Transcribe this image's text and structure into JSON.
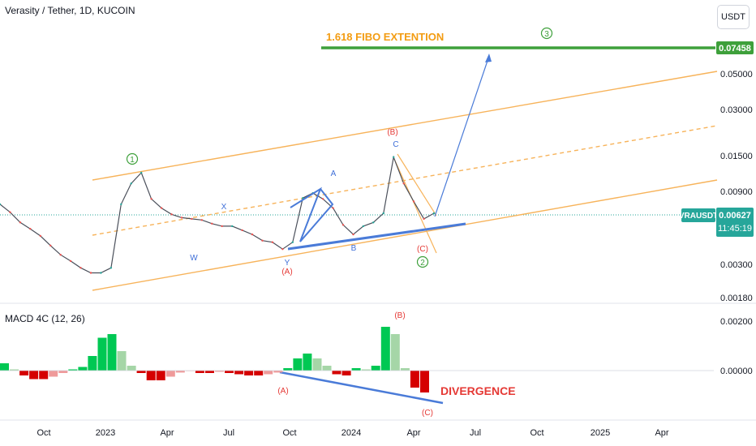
{
  "header": {
    "title": "Verasity / Tether, 1D, KUCOIN"
  },
  "currency_button": "USDT",
  "colors": {
    "up": "#26a69a",
    "down": "#ef5350",
    "channel": "#f7b35a",
    "trend": "#4a7bd8",
    "fibo": "#3ea03b",
    "label_red": "#e53935",
    "label_blue": "#3f6fd8",
    "fibo_text": "#f39c12"
  },
  "chart_data": [
    {
      "type": "line",
      "title": "Verasity / Tether, 1D, KUCOIN",
      "y_scale": "log",
      "y_ticks": [
        "0.05000",
        "0.03000",
        "0.01500",
        "0.00900",
        "0.00300",
        "0.00180"
      ],
      "x_ticks": [
        "Oct",
        "2023",
        "Apr",
        "Jul",
        "Oct",
        "2024",
        "Apr",
        "Jul",
        "Oct",
        "2025",
        "Apr"
      ],
      "price_label": {
        "symbol": "VRAUSDT",
        "value": "0.00627",
        "countdown": "11:45:19"
      },
      "target_label": "0.07458",
      "annotations": {
        "fibo_text": "1.618 FIBO EXTENTION",
        "waves": [
          "1",
          "2",
          "3"
        ],
        "labels": [
          "W",
          "X",
          "Y",
          "A",
          "B",
          "C",
          "(A)",
          "(B)",
          "(C)"
        ]
      },
      "series": [
        {
          "values": [
            0.0072,
            0.0064,
            0.0055,
            0.005,
            0.0045,
            0.0039,
            0.0034,
            0.0031,
            0.0028,
            0.0026,
            0.0026,
            0.0028,
            0.0072,
            0.0098,
            0.0115,
            0.0078,
            0.0068,
            0.0062,
            0.0059,
            0.0058,
            0.0057,
            0.0054,
            0.0052,
            0.0052,
            0.0049,
            0.0046,
            0.0042,
            0.0041,
            0.0037,
            0.0041,
            0.0079,
            0.0085,
            0.0078,
            0.0068,
            0.0053,
            0.0046,
            0.0052,
            0.0055,
            0.0063,
            0.0145,
            0.0098,
            0.0075,
            0.0058,
            0.0063
          ]
        }
      ]
    },
    {
      "type": "bar",
      "title": "MACD 4C (12, 26)",
      "y_ticks": [
        "0.00200",
        "0.00000"
      ],
      "annotations": {
        "labels": [
          "(A)",
          "(B)",
          "(C)"
        ],
        "divergence_text": "DIVERGENCE"
      },
      "values": [
        0.0003,
        5e-05,
        -0.0002,
        -0.00035,
        -0.00035,
        -0.00025,
        -0.0001,
        5e-05,
        0.00015,
        0.0006,
        0.00135,
        0.0015,
        0.0008,
        0.0002,
        -0.0001,
        -0.0004,
        -0.0004,
        -0.00025,
        -8e-05,
        -2e-05,
        -0.0001,
        -0.0001,
        -5e-05,
        -0.0001,
        -0.00015,
        -0.0002,
        -0.0002,
        -0.00015,
        -8e-05,
        0.0001,
        0.0005,
        0.0007,
        0.0005,
        0.0002,
        -0.00015,
        -0.0002,
        0.0001,
        5e-05,
        0.0002,
        0.0018,
        0.0015,
        0.0001,
        -0.0007,
        -0.0009
      ]
    }
  ]
}
